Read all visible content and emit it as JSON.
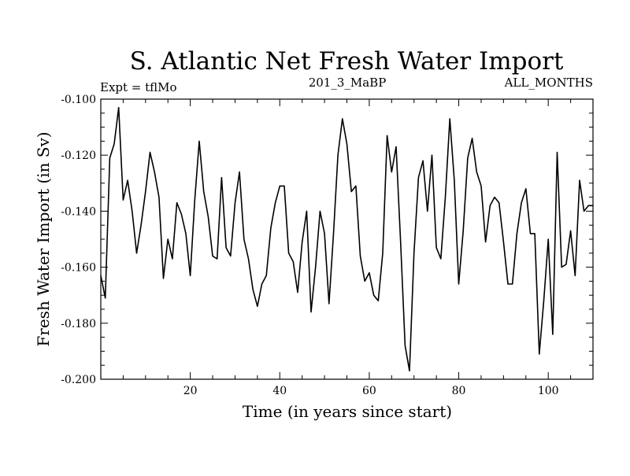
{
  "chart_data": {
    "type": "line",
    "title": "S. Atlantic Net Fresh Water Import",
    "subtitle_left": "Expt = tflMo",
    "subtitle_center": "201_3_MaBP",
    "subtitle_right": "ALL_MONTHS",
    "xlabel": "Time (in years since start)",
    "ylabel": "Fresh Water Import (in Sv)",
    "xlim": [
      0,
      110
    ],
    "ylim": [
      -0.2,
      -0.1
    ],
    "xticks": [
      20,
      40,
      60,
      80,
      100
    ],
    "yticks": [
      -0.1,
      -0.12,
      -0.14,
      -0.16,
      -0.18,
      -0.2
    ],
    "xtick_labels": [
      "20",
      "40",
      "60",
      "80",
      "100"
    ],
    "ytick_labels": [
      "-0.100",
      "-0.120",
      "-0.140",
      "-0.160",
      "-0.180",
      "-0.200"
    ],
    "grid": false,
    "series": [
      {
        "name": "Net Fresh Water Import",
        "color": "#000000",
        "x": [
          0,
          1,
          2,
          3,
          4,
          5,
          6,
          7,
          8,
          9,
          10,
          11,
          12,
          13,
          14,
          15,
          16,
          17,
          18,
          19,
          20,
          21,
          22,
          23,
          24,
          25,
          26,
          27,
          28,
          29,
          30,
          31,
          32,
          33,
          34,
          35,
          36,
          37,
          38,
          39,
          40,
          41,
          42,
          43,
          44,
          45,
          46,
          47,
          48,
          49,
          50,
          51,
          52,
          53,
          54,
          55,
          56,
          57,
          58,
          59,
          60,
          61,
          62,
          63,
          64,
          65,
          66,
          67,
          68,
          69,
          70,
          71,
          72,
          73,
          74,
          75,
          76,
          77,
          78,
          79,
          80,
          81,
          82,
          83,
          84,
          85,
          86,
          87,
          88,
          89,
          90,
          91,
          92,
          93,
          94,
          95,
          96,
          97,
          98,
          99,
          100,
          101,
          102,
          103,
          104,
          105,
          106,
          107,
          108,
          109,
          110
        ],
        "values": [
          -0.163,
          -0.171,
          -0.121,
          -0.116,
          -0.103,
          -0.136,
          -0.129,
          -0.14,
          -0.155,
          -0.145,
          -0.133,
          -0.119,
          -0.126,
          -0.135,
          -0.164,
          -0.15,
          -0.157,
          -0.137,
          -0.141,
          -0.148,
          -0.163,
          -0.136,
          -0.115,
          -0.133,
          -0.142,
          -0.156,
          -0.157,
          -0.128,
          -0.153,
          -0.156,
          -0.137,
          -0.126,
          -0.15,
          -0.157,
          -0.168,
          -0.174,
          -0.166,
          -0.163,
          -0.146,
          -0.137,
          -0.131,
          -0.131,
          -0.155,
          -0.158,
          -0.169,
          -0.151,
          -0.14,
          -0.176,
          -0.16,
          -0.14,
          -0.148,
          -0.173,
          -0.148,
          -0.12,
          -0.107,
          -0.116,
          -0.133,
          -0.131,
          -0.156,
          -0.165,
          -0.162,
          -0.17,
          -0.172,
          -0.155,
          -0.113,
          -0.126,
          -0.117,
          -0.151,
          -0.188,
          -0.197,
          -0.155,
          -0.128,
          -0.122,
          -0.14,
          -0.12,
          -0.153,
          -0.157,
          -0.135,
          -0.107,
          -0.129,
          -0.166,
          -0.147,
          -0.121,
          -0.114,
          -0.126,
          -0.131,
          -0.151,
          -0.138,
          -0.135,
          -0.137,
          -0.151,
          -0.166,
          -0.166,
          -0.148,
          -0.137,
          -0.132,
          -0.148,
          -0.148,
          -0.191,
          -0.172,
          -0.15,
          -0.184,
          -0.119,
          -0.16,
          -0.159,
          -0.147,
          -0.163,
          -0.129,
          -0.14,
          -0.138,
          -0.138
        ]
      }
    ]
  }
}
